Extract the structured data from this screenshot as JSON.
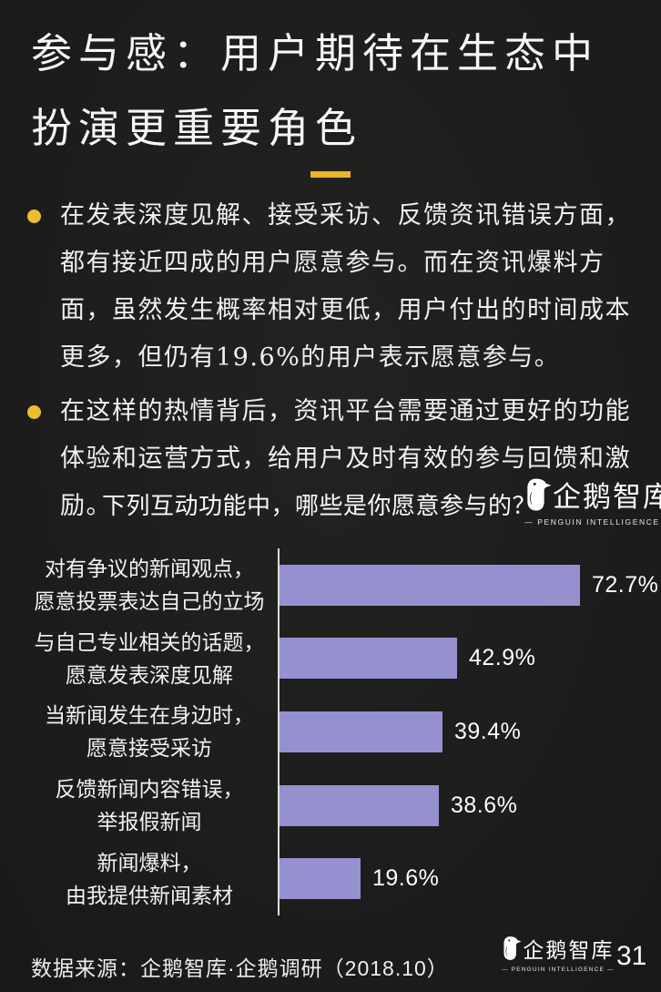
{
  "page": {
    "title": "参与感：用户期待在生态中扮演更重要角色",
    "source": "数据来源：企鹅智库·企鹅调研（2018.10）",
    "page_number": "31"
  },
  "bullets": [
    {
      "text": "在发表深度见解、接受采访、反馈资讯错误方面，都有接近四成的用户愿意参与。而在资讯爆料方面，虽然发生概率相对更低，用户付出的时间成本更多，但仍有19.6%的用户表示愿意参与。"
    },
    {
      "text": "在这样的热情背后，资讯平台需要通过更好的功能体验和运营方式，给用户及时有效的参与回馈和激励。"
    }
  ],
  "logo": {
    "icon": "penguin-icon",
    "name_cn": "企鹅智库",
    "name_en": "PENGUIN INTELLIGENCE",
    "name_en_display": "— PENGUIN INTELLIGENCE —"
  },
  "chart_data": {
    "type": "bar",
    "orientation": "horizontal",
    "title": "下列互动功能中，哪些是你愿意参与的？",
    "categories": [
      "对有争议的新闻观点，愿意投票表达自己的立场",
      "与自己专业相关的话题，愿意发表深度见解",
      "当新闻发生在身边时，愿意接受采访",
      "反馈新闻内容错误，举报假新闻",
      "新闻爆料，由我提供新闻素材"
    ],
    "categories_lines": [
      [
        "对有争议的新闻观点，",
        "愿意投票表达自己的立场"
      ],
      [
        "与自己专业相关的话题，",
        "愿意发表深度见解"
      ],
      [
        "当新闻发生在身边时，",
        "愿意接受采访"
      ],
      [
        "反馈新闻内容错误，",
        "举报假新闻"
      ],
      [
        "新闻爆料，",
        "由我提供新闻素材"
      ]
    ],
    "values": [
      72.7,
      42.9,
      39.4,
      38.6,
      19.6
    ],
    "value_labels": [
      "72.7%",
      "42.9%",
      "39.4%",
      "38.6%",
      "19.6%"
    ],
    "xlim": [
      0,
      100
    ],
    "grid": false,
    "legend": false,
    "bar_color": "#9590D0",
    "axis_color": "#DCDCDA"
  },
  "colors": {
    "background": "#1D1D1C",
    "accent_gold": "#EDB51F",
    "bullet_gold": "#EFBE2B",
    "text_white": "#F2F1EF"
  }
}
